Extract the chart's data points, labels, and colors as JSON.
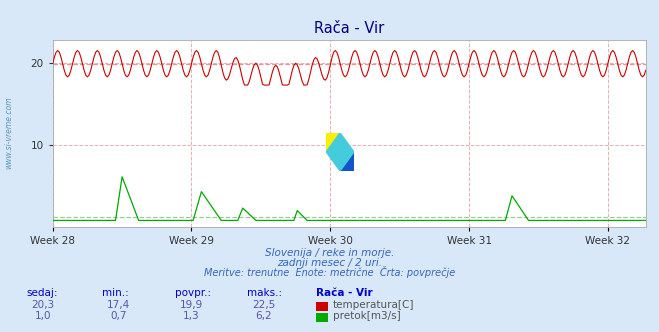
{
  "title": "Rača - Vir",
  "background_color": "#d8e8f8",
  "plot_bg_color": "#ffffff",
  "x_labels": [
    "Week 28",
    "Week 29",
    "Week 30",
    "Week 31",
    "Week 32"
  ],
  "x_ticks": [
    0,
    84,
    168,
    252,
    336
  ],
  "total_points": 360,
  "y_min": 0,
  "y_max": 22.5,
  "y_ticks": [
    10,
    20
  ],
  "temp_color": "#cc0000",
  "flow_color": "#00aa00",
  "avg_temp_color": "#dd9999",
  "avg_flow_color": "#99cc99",
  "temp_avg": 19.9,
  "flow_avg": 1.3,
  "temp_min": 17.4,
  "temp_max": 22.5,
  "flow_min": 0.7,
  "flow_max": 6.2,
  "temp_current": 20.3,
  "flow_current": 1.0,
  "subtitle1": "Slovenija / reke in morje.",
  "subtitle2": "zadnji mesec / 2 uri.",
  "subtitle3": "Meritve: trenutne  Enote: metrične  Črta: povprečje",
  "watermark": "www.si-vreme.com",
  "info_headers": [
    "sedaj:",
    "min.:",
    "povpr.:",
    "maks.:",
    "Rača - Vir"
  ],
  "info_row1_vals": [
    "20,3",
    "17,4",
    "19,9",
    "22,5"
  ],
  "info_row1_label": "temperatura[C]",
  "info_row2_vals": [
    "1,0",
    "0,7",
    "1,3",
    "6,2"
  ],
  "info_row2_label": "pretok[m3/s]"
}
